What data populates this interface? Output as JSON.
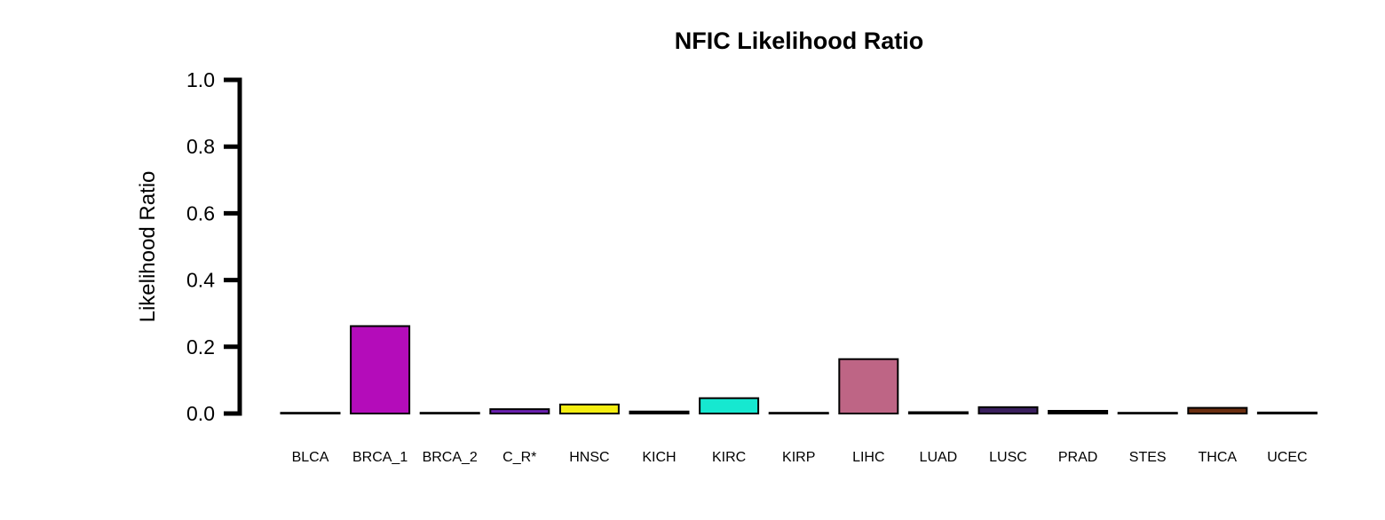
{
  "chart_data": {
    "type": "bar",
    "title": "NFIC Likelihood Ratio",
    "xlabel": "",
    "ylabel": "Likelihood Ratio",
    "ylim": [
      0,
      1
    ],
    "yticks": [
      "0.0",
      "0.2",
      "0.4",
      "0.6",
      "0.8",
      "1.0"
    ],
    "grid": false,
    "legend": "none",
    "categories": [
      "BLCA",
      "BRCA_1",
      "BRCA_2",
      "C_R*",
      "HNSC",
      "KICH",
      "KIRC",
      "KIRP",
      "LIHC",
      "LUAD",
      "LUSC",
      "PRAD",
      "STES",
      "THCA",
      "UCEC"
    ],
    "values": [
      0.001,
      0.262,
      0.001,
      0.013,
      0.027,
      0.006,
      0.046,
      0.001,
      0.163,
      0.004,
      0.019,
      0.008,
      0.001,
      0.017,
      0.003
    ],
    "colors": [
      "#000000",
      "#b40cba",
      "#000000",
      "#6a1fb0",
      "#f5ee10",
      "#000000",
      "#16e8d0",
      "#000000",
      "#be6585",
      "#000000",
      "#3a1f5e",
      "#000000",
      "#000000",
      "#6b2e10",
      "#000000"
    ]
  }
}
